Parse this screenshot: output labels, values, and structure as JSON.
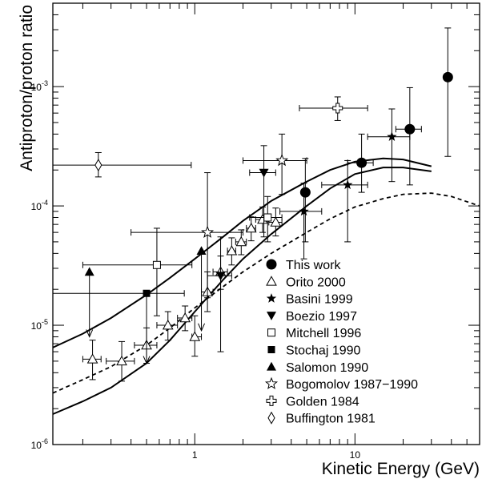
{
  "chart_data": {
    "type": "scatter",
    "xlabel": "Kinetic Energy (GeV)",
    "ylabel": "Antiproton/proton ratio",
    "xscale": "log",
    "yscale": "log",
    "xlim": [
      0.13,
      60
    ],
    "ylim": [
      1e-06,
      0.005
    ],
    "x_tick_labels": [
      {
        "value": 1,
        "label": "1"
      },
      {
        "value": 10,
        "label": "10"
      }
    ],
    "y_tick_labels": [
      {
        "value": 1e-06,
        "base": "10",
        "exp": "-6"
      },
      {
        "value": 1e-05,
        "base": "10",
        "exp": "-5"
      },
      {
        "value": 0.0001,
        "base": "10",
        "exp": "-4"
      },
      {
        "value": 0.001,
        "base": "10",
        "exp": "-3"
      }
    ],
    "legend_position": "bottom-right",
    "series": [
      {
        "name": "This work",
        "marker": "circle-filled",
        "points": [
          {
            "x": 4.9,
            "y": 0.00013,
            "xerr": [
              4.9,
              4.9
            ],
            "yerr": [
              5e-05,
              0.00025
            ]
          },
          {
            "x": 11,
            "y": 0.00023,
            "xerr": [
              9,
              13
            ],
            "yerr": [
              0.00013,
              0.0004
            ]
          },
          {
            "x": 22,
            "y": 0.00044,
            "xerr": [
              18,
              26
            ],
            "yerr": [
              0.00015,
              0.00098
            ]
          },
          {
            "x": 38,
            "y": 0.0012,
            "xerr": [
              38,
              38
            ],
            "yerr": [
              0.00026,
              0.0031
            ]
          }
        ]
      },
      {
        "name": "Orito 2000",
        "marker": "triangle-up-open",
        "points": [
          {
            "x": 0.23,
            "y": 5.2e-06,
            "xerr": [
              0.2,
              0.26
            ],
            "yerr": [
              3.5e-06,
              7.5e-06
            ]
          },
          {
            "x": 0.35,
            "y": 5e-06,
            "xerr": [
              0.28,
              0.42
            ],
            "yerr": [
              3.4e-06,
              7.3e-06
            ]
          },
          {
            "x": 0.5,
            "y": 6.8e-06,
            "xerr": [
              0.42,
              0.58
            ],
            "yerr": [
              4.8e-06,
              9.5e-06
            ]
          },
          {
            "x": 0.68,
            "y": 1e-05,
            "xerr": [
              0.58,
              0.78
            ],
            "yerr": [
              7.5e-06,
              1.3e-05
            ]
          },
          {
            "x": 0.87,
            "y": 1.15e-05,
            "xerr": [
              0.78,
              0.96
            ],
            "yerr": [
              9e-06,
              1.45e-05
            ]
          },
          {
            "x": 1.0,
            "y": 8e-06,
            "xerr": [
              0.96,
              1.1
            ],
            "yerr": [
              5.5e-06,
              1.2e-05
            ]
          },
          {
            "x": 1.2,
            "y": 1.9e-05,
            "xerr": [
              1.1,
              1.3
            ],
            "yerr": [
              1.3e-05,
              2.8e-05
            ]
          },
          {
            "x": 1.45,
            "y": 2.8e-05,
            "xerr": [
              1.3,
              1.6
            ],
            "yerr": [
              2e-05,
              3.8e-05
            ]
          },
          {
            "x": 1.7,
            "y": 4.2e-05,
            "xerr": [
              1.6,
              1.8
            ],
            "yerr": [
              3.2e-05,
              5.4e-05
            ]
          },
          {
            "x": 1.95,
            "y": 5e-05,
            "xerr": [
              1.8,
              2.1
            ],
            "yerr": [
              3.9e-05,
              6.3e-05
            ]
          },
          {
            "x": 2.25,
            "y": 6.5e-05,
            "xerr": [
              2.1,
              2.4
            ],
            "yerr": [
              5.1e-05,
              8.1e-05
            ]
          },
          {
            "x": 2.65,
            "y": 7.7e-05,
            "xerr": [
              2.4,
              2.9
            ],
            "yerr": [
              6e-05,
              9.8e-05
            ]
          },
          {
            "x": 3.2,
            "y": 7.3e-05,
            "xerr": [
              2.9,
              3.5
            ],
            "yerr": [
              5.6e-05,
              9.6e-05
            ]
          }
        ]
      },
      {
        "name": "Basini 1999",
        "marker": "star-filled",
        "points": [
          {
            "x": 4.8,
            "y": 9e-05,
            "xerr": [
              3.4,
              6.2
            ],
            "yerr": [
              3.6e-05,
              0.000155
            ]
          },
          {
            "x": 9.0,
            "y": 0.00015,
            "xerr": [
              6.2,
              12
            ],
            "yerr": [
              5e-05,
              0.00024
            ]
          },
          {
            "x": 17,
            "y": 0.00038,
            "xerr": [
              12,
              22
            ],
            "yerr": [
              0.00016,
              0.00065
            ]
          }
        ]
      },
      {
        "name": "Boezio 1997",
        "marker": "triangle-down-filled",
        "points": [
          {
            "x": 1.45,
            "y": 2.6e-05,
            "xerr": [
              1.2,
              1.7
            ],
            "yerr": [
              6e-06,
              5.5e-05
            ]
          },
          {
            "x": 2.7,
            "y": 0.00019,
            "xerr": [
              2.2,
              3.2
            ],
            "yerr": [
              5.5e-05,
              0.00032
            ]
          }
        ]
      },
      {
        "name": "Mitchell 1996",
        "marker": "square-open",
        "points": [
          {
            "x": 0.58,
            "y": 3.2e-05,
            "xerr": [
              0.2,
              0.96
            ],
            "yerr": [
              1.2e-05,
              6.5e-05
            ]
          },
          {
            "x": 2.85,
            "y": 8e-05,
            "xerr": [
              2.2,
              3.5
            ],
            "yerr": [
              5e-05,
              0.00012
            ]
          }
        ]
      },
      {
        "name": "Stochaj 1990",
        "marker": "square-filled",
        "points": [
          {
            "x": 0.5,
            "y": 1.85e-05,
            "xerr": [
              0.13,
              0.86
            ],
            "yerr": [
              4.8e-06,
              1.85e-05
            ],
            "upper_limit": true
          }
        ]
      },
      {
        "name": "Salomon 1990",
        "marker": "triangle-up-filled",
        "points": [
          {
            "x": 0.22,
            "y": 2.8e-05,
            "xerr": [
              0.22,
              0.22
            ],
            "yerr": [
              8e-06,
              2.8e-05
            ],
            "upper_limit": true
          },
          {
            "x": 1.1,
            "y": 4.2e-05,
            "xerr": [
              1.1,
              1.1
            ],
            "yerr": [
              9e-06,
              4.2e-05
            ],
            "upper_limit": true
          }
        ]
      },
      {
        "name": "Bogomolov 1987-1990",
        "marker": "star-open",
        "points": [
          {
            "x": 1.2,
            "y": 6e-05,
            "xerr": [
              0.4,
              2.0
            ],
            "yerr": [
              1.7e-05,
              0.00019
            ]
          },
          {
            "x": 3.5,
            "y": 0.00024,
            "xerr": [
              2.0,
              5.0
            ],
            "yerr": [
              0.000125,
              0.0004
            ]
          }
        ]
      },
      {
        "name": "Golden 1984",
        "marker": "cross-open",
        "points": [
          {
            "x": 7.8,
            "y": 0.00066,
            "xerr": [
              4.5,
              12
            ],
            "yerr": [
              0.00052,
              0.00082
            ]
          }
        ]
      },
      {
        "name": "Buffington 1981",
        "marker": "diamond-open",
        "points": [
          {
            "x": 0.25,
            "y": 0.00022,
            "xerr": [
              0.13,
              0.95
            ],
            "yerr": [
              0.000175,
              0.00028
            ]
          }
        ]
      }
    ],
    "curves": [
      {
        "style": "solid",
        "points": [
          [
            0.13,
            6.5e-06
          ],
          [
            0.2,
            8.5e-06
          ],
          [
            0.3,
            1.15e-05
          ],
          [
            0.5,
            1.8e-05
          ],
          [
            0.7,
            2.5e-05
          ],
          [
            1.0,
            3.6e-05
          ],
          [
            1.5,
            5.5e-05
          ],
          [
            2,
            7.5e-05
          ],
          [
            3,
            0.00011
          ],
          [
            5,
            0.00016
          ],
          [
            7,
            0.0002
          ],
          [
            10,
            0.000235
          ],
          [
            15,
            0.00025
          ],
          [
            20,
            0.000245
          ],
          [
            30,
            0.000215
          ]
        ]
      },
      {
        "style": "solid",
        "points": [
          [
            0.13,
            1.8e-06
          ],
          [
            0.2,
            2.3e-06
          ],
          [
            0.3,
            3e-06
          ],
          [
            0.5,
            4.8e-06
          ],
          [
            0.7,
            7.5e-06
          ],
          [
            1.0,
            1.3e-05
          ],
          [
            1.5,
            2.4e-05
          ],
          [
            2,
            3.6e-05
          ],
          [
            3,
            5.8e-05
          ],
          [
            5,
            0.0001
          ],
          [
            7,
            0.00014
          ],
          [
            10,
            0.000185
          ],
          [
            15,
            0.00021
          ],
          [
            20,
            0.00021
          ],
          [
            30,
            0.000195
          ]
        ]
      },
      {
        "style": "dashed",
        "points": [
          [
            0.13,
            2.7e-06
          ],
          [
            0.2,
            3.5e-06
          ],
          [
            0.3,
            4.5e-06
          ],
          [
            0.5,
            6.8e-06
          ],
          [
            0.7,
            9.5e-06
          ],
          [
            1.0,
            1.4e-05
          ],
          [
            1.5,
            2.1e-05
          ],
          [
            2,
            2.8e-05
          ],
          [
            3,
            4e-05
          ],
          [
            5,
            6e-05
          ],
          [
            7,
            7.8e-05
          ],
          [
            10,
            9.8e-05
          ],
          [
            15,
            0.000115
          ],
          [
            20,
            0.000125
          ],
          [
            30,
            0.000128
          ],
          [
            40,
            0.00012
          ],
          [
            60,
            0.0001
          ]
        ]
      }
    ]
  }
}
